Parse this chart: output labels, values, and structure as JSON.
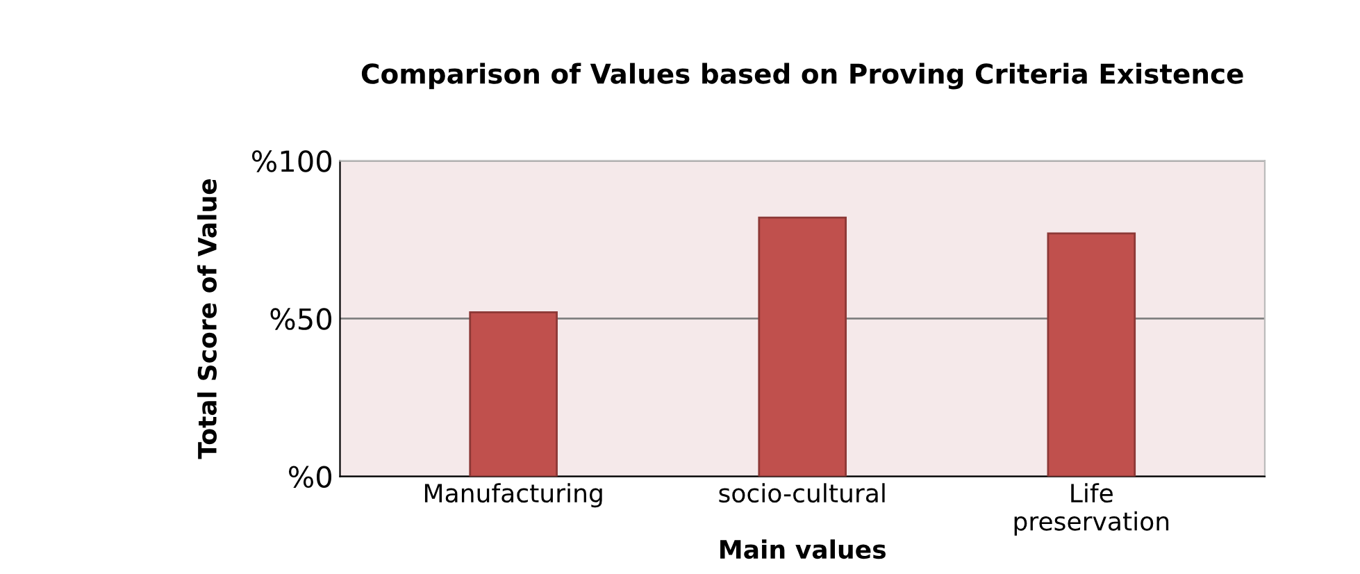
{
  "chart_data": {
    "type": "bar",
    "title": "Comparison of Values based on Proving Criteria Existence",
    "xlabel": "Main values",
    "ylabel": "Total Score of Value",
    "categories": [
      "Manufacturing",
      "socio-cultural",
      "Life\npreservation"
    ],
    "values": [
      52,
      82,
      77
    ],
    "color": "#c0504d",
    "ylim": [
      0,
      100
    ],
    "yticks": [
      {
        "value": 0,
        "label": "%0"
      },
      {
        "value": 50,
        "label": "%50"
      },
      {
        "value": 100,
        "label": "%100"
      }
    ],
    "grid": "y"
  }
}
